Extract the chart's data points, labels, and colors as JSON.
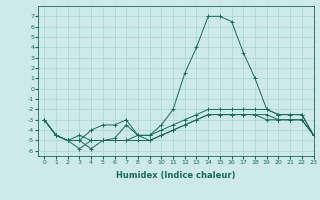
{
  "xlabel": "Humidex (Indice chaleur)",
  "xlim": [
    -0.5,
    23
  ],
  "ylim": [
    -6.5,
    8
  ],
  "yticks": [
    -6,
    -5,
    -4,
    -3,
    -2,
    -1,
    0,
    1,
    2,
    3,
    4,
    5,
    6,
    7
  ],
  "xticks": [
    0,
    1,
    2,
    3,
    4,
    5,
    6,
    7,
    8,
    9,
    10,
    11,
    12,
    13,
    14,
    15,
    16,
    17,
    18,
    19,
    20,
    21,
    22,
    23
  ],
  "background_color": "#cee9e9",
  "grid_color": "#aad4d4",
  "line_color": "#1a6b5a",
  "series": [
    {
      "x": [
        0,
        1,
        2,
        3,
        4,
        5,
        6,
        7,
        8,
        9,
        10,
        11,
        12,
        13,
        14,
        15,
        16,
        17,
        18,
        19,
        20,
        21,
        22,
        23
      ],
      "y": [
        -3,
        -4.5,
        -5,
        -5,
        -5.8,
        -5,
        -4.8,
        -3.5,
        -4.5,
        -4.5,
        -3.5,
        -2,
        1.5,
        4,
        7,
        7,
        6.5,
        3.5,
        1,
        -2,
        -2.5,
        -2.5,
        -2.5,
        -4.5
      ]
    },
    {
      "x": [
        0,
        1,
        2,
        3,
        4,
        5,
        6,
        7,
        8,
        9,
        10,
        11,
        12,
        13,
        14,
        15,
        16,
        17,
        18,
        19,
        20,
        21,
        22,
        23
      ],
      "y": [
        -3,
        -4.5,
        -5,
        -4.5,
        -5,
        -5,
        -5,
        -5,
        -4.5,
        -4.5,
        -4,
        -3.5,
        -3,
        -2.5,
        -2,
        -2,
        -2,
        -2,
        -2,
        -2,
        -2.5,
        -2.5,
        -2.5,
        -4.5
      ]
    },
    {
      "x": [
        0,
        1,
        2,
        3,
        4,
        5,
        6,
        7,
        8,
        9,
        10,
        11,
        12,
        13,
        14,
        15,
        16,
        17,
        18,
        19,
        20,
        21,
        22,
        23
      ],
      "y": [
        -3,
        -4.5,
        -5,
        -5.8,
        -5,
        -5,
        -5,
        -5,
        -5,
        -5,
        -4.5,
        -4,
        -3.5,
        -3,
        -2.5,
        -2.5,
        -2.5,
        -2.5,
        -2.5,
        -2.5,
        -3,
        -3,
        -3,
        -4.5
      ]
    },
    {
      "x": [
        0,
        1,
        2,
        3,
        4,
        5,
        6,
        7,
        8,
        9,
        10,
        11,
        12,
        13,
        14,
        15,
        16,
        17,
        18,
        19,
        20,
        21,
        22,
        23
      ],
      "y": [
        -3,
        -4.5,
        -5,
        -5,
        -4,
        -3.5,
        -3.5,
        -3,
        -4.5,
        -5,
        -4.5,
        -4,
        -3.5,
        -3,
        -2.5,
        -2.5,
        -2.5,
        -2.5,
        -2.5,
        -3,
        -3,
        -3,
        -3,
        -4.5
      ]
    }
  ]
}
